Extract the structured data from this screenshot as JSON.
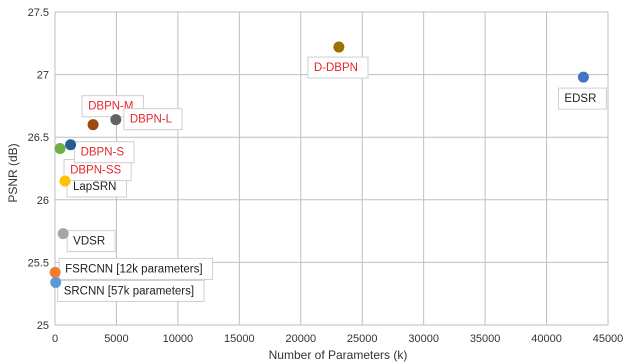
{
  "chart_data": {
    "type": "scatter",
    "xlabel": "Number of Parameters (k)",
    "ylabel": "PSNR (dB)",
    "xlim": [
      0,
      45000
    ],
    "ylim": [
      25,
      27.5
    ],
    "xticks": [
      0,
      5000,
      10000,
      15000,
      20000,
      25000,
      30000,
      35000,
      40000,
      45000
    ],
    "yticks": [
      25,
      25.5,
      26,
      26.5,
      27,
      27.5
    ],
    "grid": true,
    "legend": "none",
    "points": [
      {
        "label": "SRCNN [57k parameters]",
        "x": 57,
        "y": 25.34,
        "color": "#5b9bd5",
        "label_color": "#222222"
      },
      {
        "label": "FSRCNN [12k parameters]",
        "x": 12,
        "y": 25.42,
        "color": "#ed7d31",
        "label_color": "#222222"
      },
      {
        "label": "VDSR",
        "x": 665,
        "y": 25.73,
        "color": "#a5a5a5",
        "label_color": "#222222"
      },
      {
        "label": "LapSRN",
        "x": 812,
        "y": 26.15,
        "color": "#ffc000",
        "label_color": "#222222"
      },
      {
        "label": "DBPN-SS",
        "x": 413,
        "y": 26.41,
        "color": "#70ad47",
        "label_color": "#e8262b"
      },
      {
        "label": "DBPN-S",
        "x": 1267,
        "y": 26.44,
        "color": "#255e91",
        "label_color": "#e8262b"
      },
      {
        "label": "DBPN-M",
        "x": 3100,
        "y": 26.6,
        "color": "#9e480e",
        "label_color": "#e8262b"
      },
      {
        "label": "DBPN-L",
        "x": 4950,
        "y": 26.64,
        "color": "#636363",
        "label_color": "#e8262b"
      },
      {
        "label": "D-DBPN",
        "x": 23100,
        "y": 27.22,
        "color": "#997300",
        "label_color": "#e8262b"
      },
      {
        "label": "EDSR",
        "x": 43000,
        "y": 26.98,
        "color": "#4472c4",
        "label_color": "#222222"
      }
    ]
  }
}
